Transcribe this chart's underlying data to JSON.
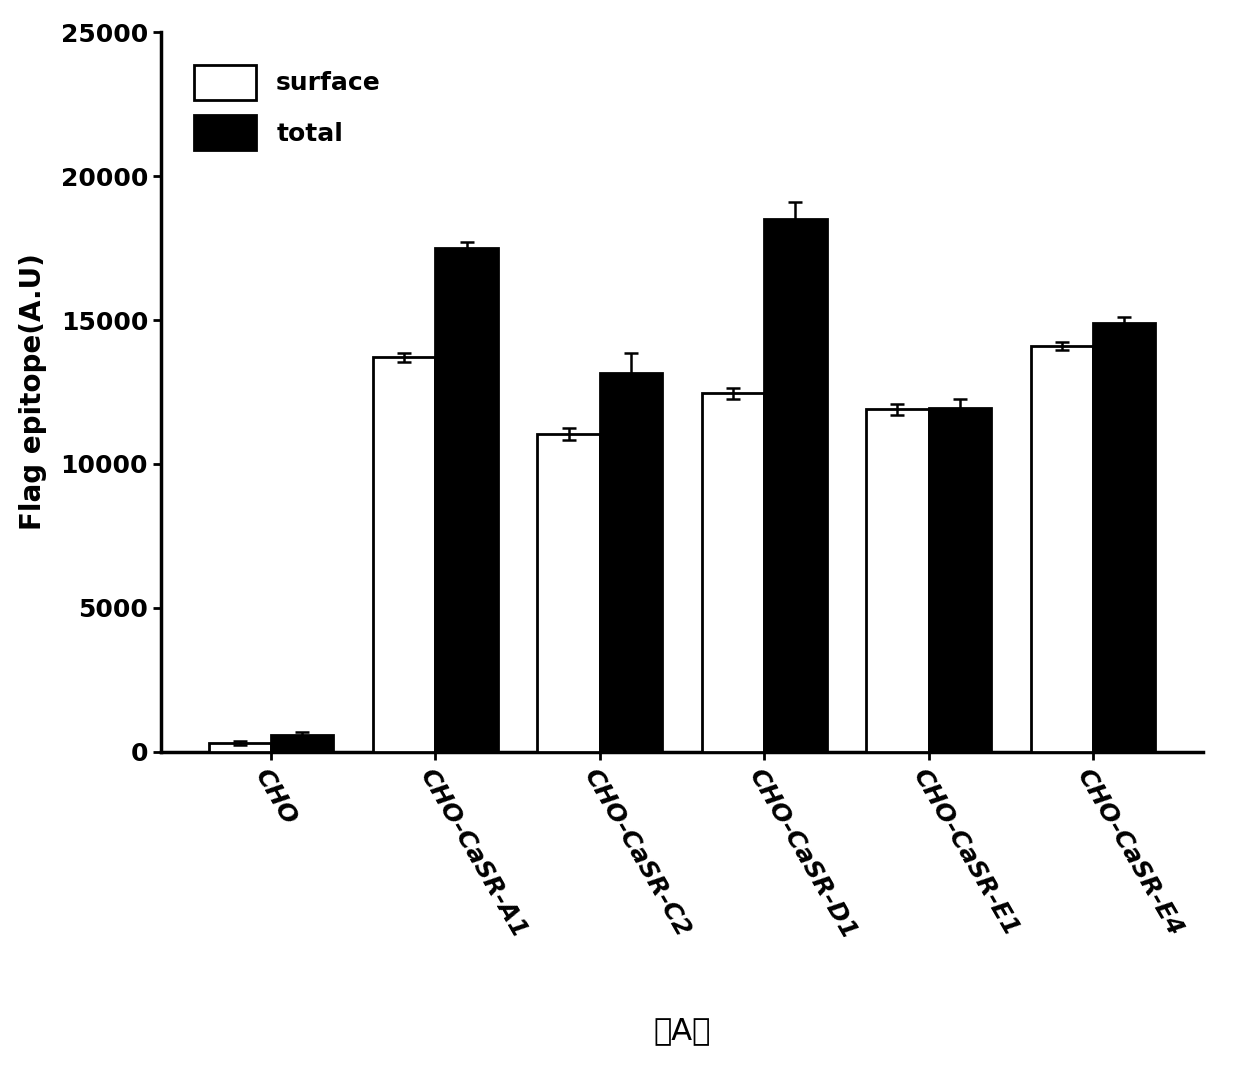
{
  "categories": [
    "CHO",
    "CHO-CaSR-A1",
    "CHO-CaSR-C2",
    "CHO-CaSR-D1",
    "CHO-CaSR-E1",
    "CHO-CaSR-E4"
  ],
  "surface_values": [
    300,
    13700,
    11050,
    12450,
    11900,
    14100
  ],
  "total_values": [
    600,
    17500,
    13150,
    18500,
    11950,
    14900
  ],
  "surface_errors": [
    80,
    150,
    200,
    200,
    200,
    150
  ],
  "total_errors": [
    100,
    200,
    700,
    600,
    300,
    200
  ],
  "surface_color": "#ffffff",
  "surface_edgecolor": "#000000",
  "total_color": "#000000",
  "total_edgecolor": "#000000",
  "ylabel": "Flag epitope(A.U)",
  "ylim": [
    0,
    25000
  ],
  "yticks": [
    0,
    5000,
    10000,
    15000,
    20000,
    25000
  ],
  "bar_width": 0.38,
  "legend_labels": [
    "surface",
    "total"
  ],
  "subtitle": "（A）",
  "title_fontsize": 22,
  "label_fontsize": 20,
  "tick_fontsize": 18,
  "legend_fontsize": 18
}
